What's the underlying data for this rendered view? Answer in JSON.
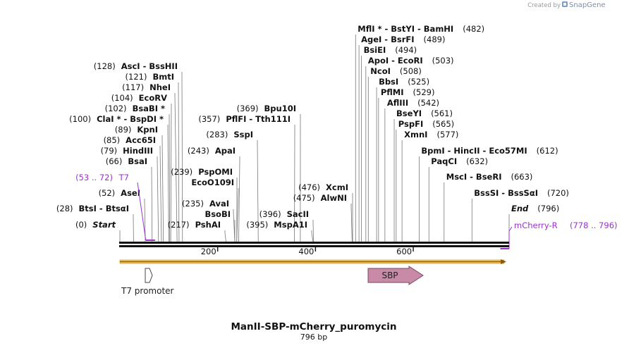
{
  "title": "ManII-SBP-mCherry_puromycin",
  "length_label": "796 bp",
  "credit": {
    "text": "Created by",
    "brand": "SnapGene"
  },
  "map": {
    "length": 796
  },
  "ticks": [
    {
      "pos": 200,
      "label": "200"
    },
    {
      "pos": 400,
      "label": "400"
    },
    {
      "pos": 600,
      "label": "600"
    }
  ],
  "cut_sites": [
    {
      "pos": 0,
      "left": "(0)",
      "name": "Start",
      "italic": true
    },
    {
      "pos": 28,
      "left": "(28)",
      "name": "BtsI  -  BtsαI"
    },
    {
      "pos": 52,
      "left": "(52)",
      "name": "AseI"
    },
    {
      "pos": 66,
      "left": "(66)",
      "name": "BsaI"
    },
    {
      "pos": 79,
      "left": "(79)",
      "name": "HindIII"
    },
    {
      "pos": 85,
      "left": "(85)",
      "name": "Acc65I"
    },
    {
      "pos": 89,
      "left": "(89)",
      "name": "KpnI"
    },
    {
      "pos": 100,
      "left": "(100)",
      "name": "ClaI *  -  BspDI *"
    },
    {
      "pos": 102,
      "left": "(102)",
      "name": "BsaBI *"
    },
    {
      "pos": 104,
      "left": "(104)",
      "name": "EcoRV"
    },
    {
      "pos": 117,
      "left": "(117)",
      "name": "NheI"
    },
    {
      "pos": 121,
      "left": "(121)",
      "name": "BmtI"
    },
    {
      "pos": 128,
      "left": "(128)",
      "name": "AscI  -  BssHII"
    },
    {
      "pos": 217,
      "left": "(217)",
      "name": "PshAI"
    },
    {
      "pos": 235,
      "left": "(235)",
      "name": "AvaI"
    },
    {
      "pos": 235,
      "left": "",
      "name": "BsoBI"
    },
    {
      "pos": 239,
      "left": "(239)",
      "name": "PspOMI"
    },
    {
      "pos": 239,
      "left": "",
      "name": "EcoO109I"
    },
    {
      "pos": 243,
      "left": "(243)",
      "name": "ApaI"
    },
    {
      "pos": 283,
      "left": "(283)",
      "name": "SspI"
    },
    {
      "pos": 357,
      "left": "(357)",
      "name": "PflFI  -  Tth111I"
    },
    {
      "pos": 369,
      "left": "(369)",
      "name": "Bpu10I"
    },
    {
      "pos": 395,
      "left": "(395)",
      "name": "MspA1I"
    },
    {
      "pos": 396,
      "left": "(396)",
      "name": "SacII"
    },
    {
      "pos": 475,
      "left": "(475)",
      "name": "AlwNI"
    },
    {
      "pos": 476,
      "left": "(476)",
      "name": "XcmI"
    },
    {
      "pos": 482,
      "right": "(482)",
      "name": "MflI *  -  BstYI  -  BamHI"
    },
    {
      "pos": 489,
      "right": "(489)",
      "name": "AgeI  -  BsrFI"
    },
    {
      "pos": 494,
      "right": "(494)",
      "name": "BsiEI"
    },
    {
      "pos": 503,
      "right": "(503)",
      "name": "ApoI  -  EcoRI"
    },
    {
      "pos": 508,
      "right": "(508)",
      "name": "NcoI"
    },
    {
      "pos": 525,
      "right": "(525)",
      "name": "BbsI"
    },
    {
      "pos": 529,
      "right": "(529)",
      "name": "PflMI"
    },
    {
      "pos": 542,
      "right": "(542)",
      "name": "AflIII"
    },
    {
      "pos": 561,
      "right": "(561)",
      "name": "BseYI"
    },
    {
      "pos": 565,
      "right": "(565)",
      "name": "PspFI"
    },
    {
      "pos": 577,
      "right": "(577)",
      "name": "XmnI"
    },
    {
      "pos": 612,
      "right": "(612)",
      "name": "BpmI  -  HincII  -  Eco57MI"
    },
    {
      "pos": 632,
      "right": "(632)",
      "name": "PaqCI"
    },
    {
      "pos": 663,
      "right": "(663)",
      "name": "MscI  -  BseRI"
    },
    {
      "pos": 720,
      "right": "(720)",
      "name": "BssSI  -  BssSαI"
    },
    {
      "pos": 796,
      "right": "(796)",
      "name": "End",
      "italic": true
    }
  ],
  "primers": [
    {
      "name": "T7",
      "range": "(53 .. 72)",
      "start": 53,
      "end": 72,
      "strand": "forward",
      "color": "#9b30d0"
    },
    {
      "name": "mCherry-R",
      "range": "(778 .. 796)",
      "start": 778,
      "end": 796,
      "strand": "reverse",
      "color": "#9b30d0"
    }
  ],
  "features": [
    {
      "name": "T7 promoter",
      "start": 53,
      "end": 72,
      "color": "#ffffff",
      "stroke": "#444444"
    },
    {
      "name": "SBP",
      "start": 508,
      "end": 620,
      "color": "#c88aa7",
      "stroke": "#7a4a60"
    }
  ],
  "orf": {
    "start": 0,
    "end": 796,
    "color": "#f3c24e"
  }
}
